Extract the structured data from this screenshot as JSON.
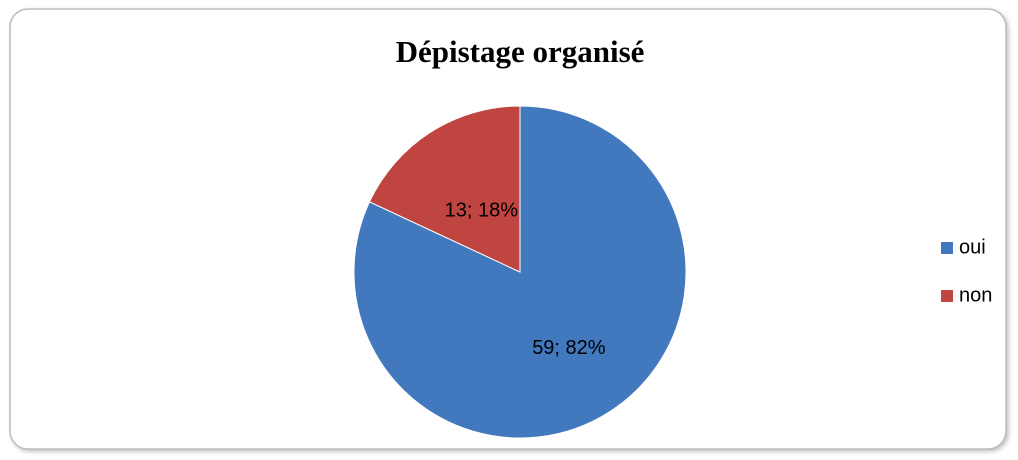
{
  "chart_data": {
    "type": "pie",
    "title": "Dépistage organisé",
    "categories": [
      "oui",
      "non"
    ],
    "values": [
      59,
      13
    ],
    "value_labels": [
      "59; 82%",
      "13; 18%"
    ],
    "colors": [
      "#4178be",
      "#c0443f"
    ],
    "legend": "right"
  }
}
